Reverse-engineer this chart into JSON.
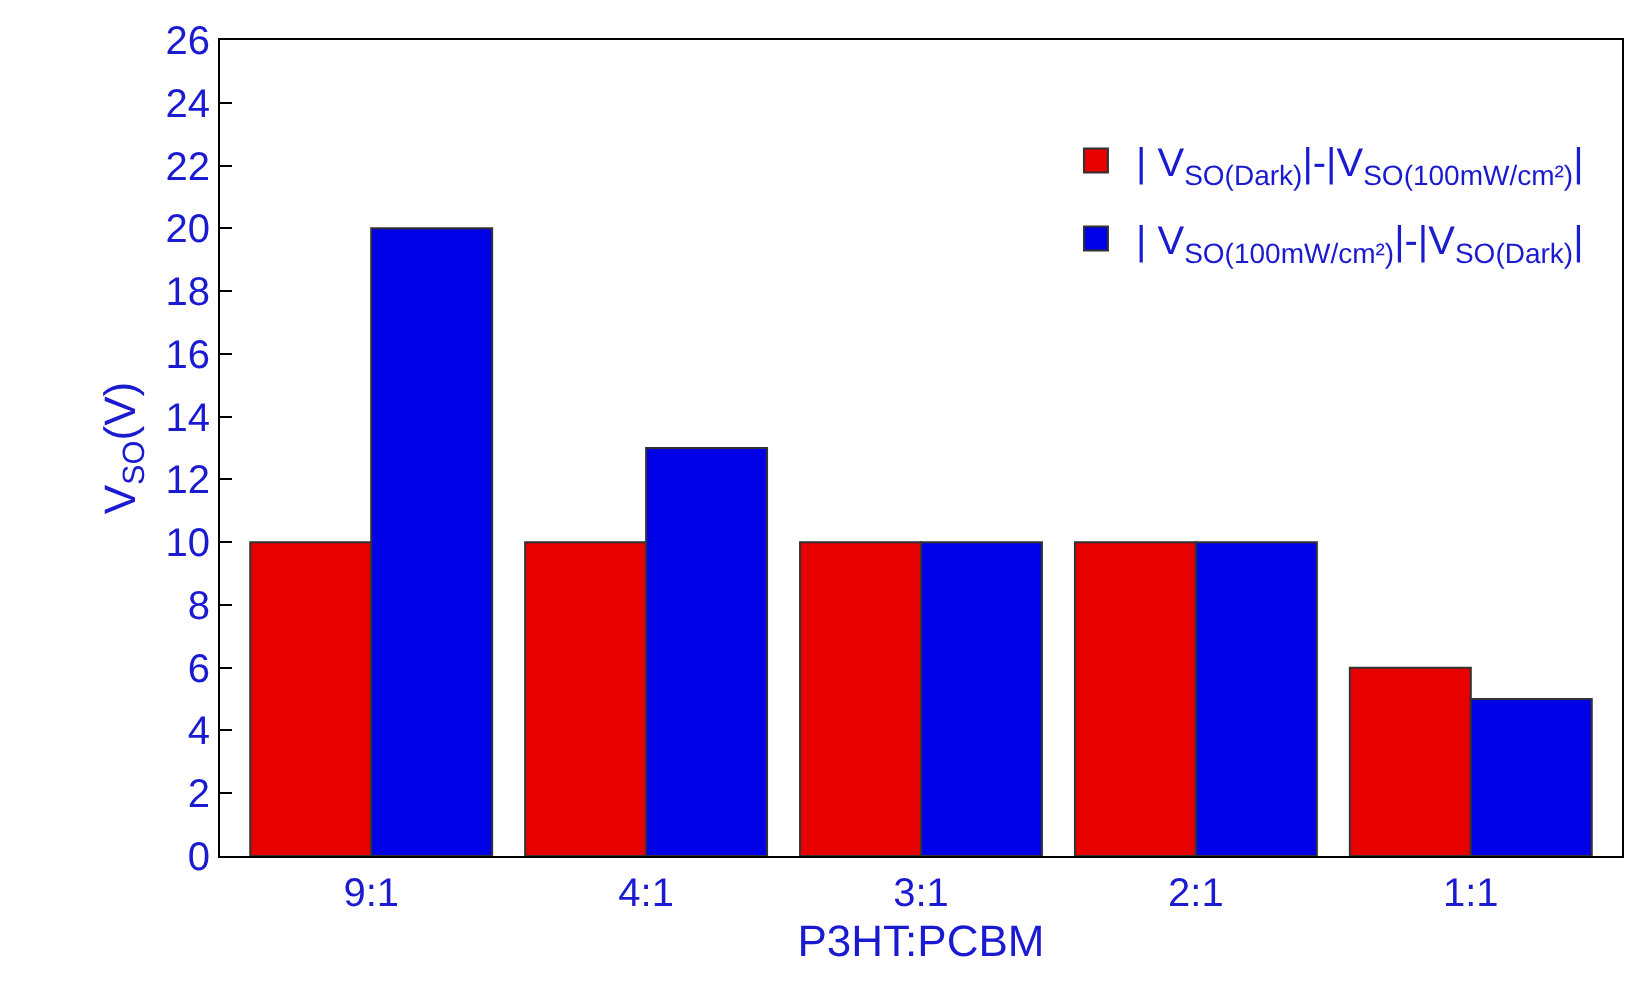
{
  "chart_data": {
    "type": "bar",
    "xlabel": "P3HT:PCBM",
    "ylabel": "V$_{SO}$(V)",
    "categories": [
      "9:1",
      "4:1",
      "3:1",
      "2:1",
      "1:1"
    ],
    "series": [
      {
        "name": "| V$_{SO(Dark)}$|-|V$_{SO(100mW/cm²)}$|",
        "color": "#e60000",
        "values": [
          10,
          10,
          10,
          10,
          6
        ]
      },
      {
        "name": "| V$_{SO(100mW/cm²)}$|-|V$_{SO(Dark)}$|",
        "color": "#0000e6",
        "values": [
          20,
          13,
          10,
          10,
          5
        ]
      }
    ],
    "ylim": [
      0,
      26
    ],
    "yticks": [
      0,
      2,
      4,
      6,
      8,
      10,
      12,
      14,
      16,
      18,
      20,
      22,
      24,
      26
    ],
    "legend": "top right"
  }
}
